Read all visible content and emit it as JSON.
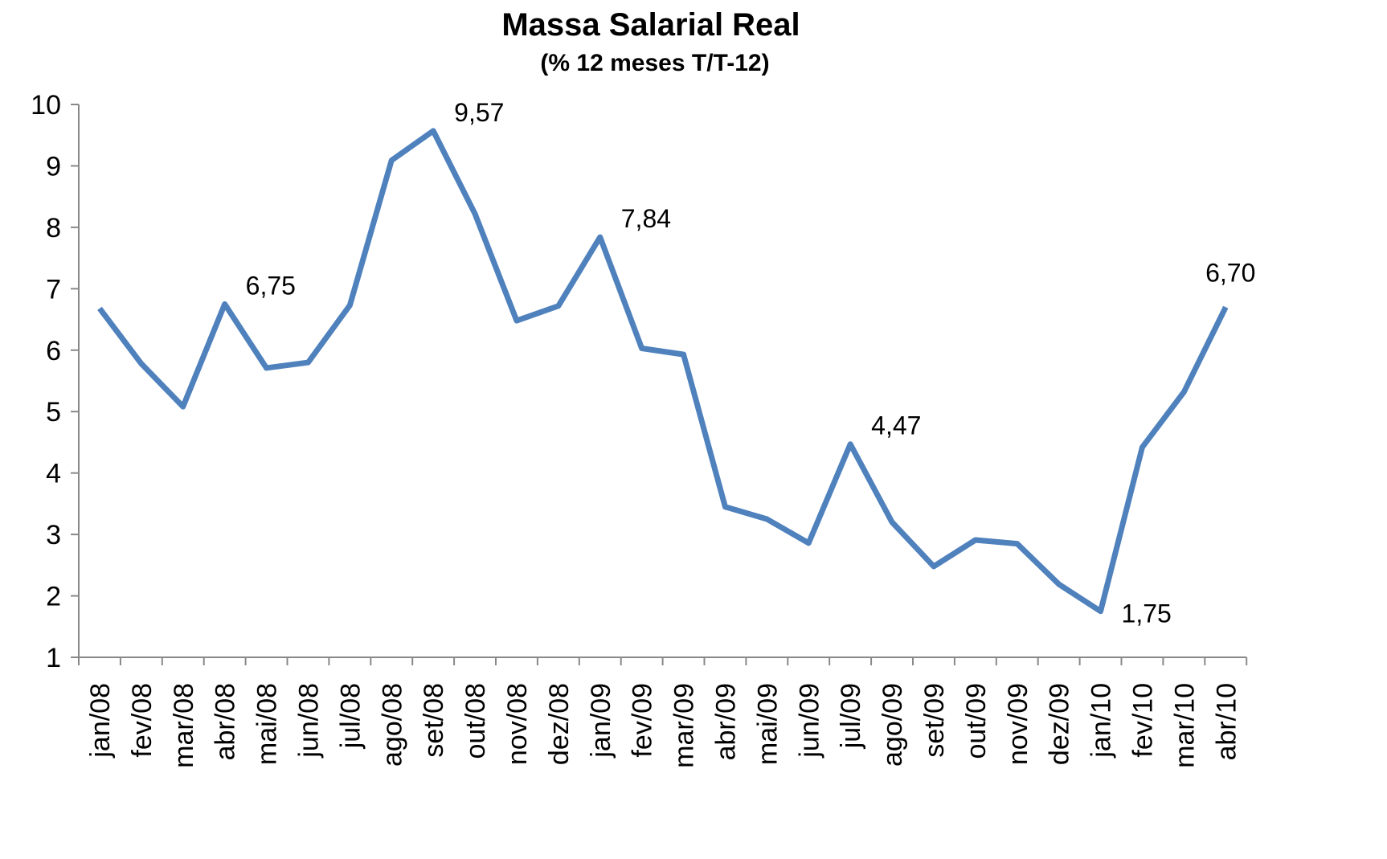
{
  "chart_data": {
    "type": "line",
    "title": "Massa Salarial Real",
    "subtitle": "(% 12 meses T/T-12)",
    "categories": [
      "jan/08",
      "fev/08",
      "mar/08",
      "abr/08",
      "mai/08",
      "jun/08",
      "jul/08",
      "ago/08",
      "set/08",
      "out/08",
      "nov/08",
      "dez/08",
      "jan/09",
      "fev/09",
      "mar/09",
      "abr/09",
      "mai/09",
      "jun/09",
      "jul/09",
      "ago/09",
      "set/09",
      "out/09",
      "nov/09",
      "dez/09",
      "jan/10",
      "fev/10",
      "mar/10",
      "abr/10"
    ],
    "values": [
      6.68,
      5.78,
      5.08,
      6.75,
      5.71,
      5.8,
      6.73,
      9.09,
      9.57,
      8.22,
      6.48,
      6.72,
      7.84,
      6.03,
      5.93,
      3.45,
      3.25,
      2.86,
      4.47,
      3.2,
      2.48,
      2.91,
      2.85,
      2.19,
      1.75,
      4.42,
      5.32,
      6.7
    ],
    "value_labels": [
      null,
      null,
      null,
      "6,75",
      null,
      null,
      null,
      null,
      "9,57",
      null,
      null,
      null,
      "7,84",
      null,
      null,
      null,
      null,
      null,
      "4,47",
      null,
      null,
      null,
      null,
      null,
      "1,75",
      null,
      null,
      "6,70"
    ],
    "color": "#4f81bd",
    "ylim": [
      1,
      10
    ],
    "yticks": [
      1,
      2,
      3,
      4,
      5,
      6,
      7,
      8,
      9,
      10
    ]
  }
}
